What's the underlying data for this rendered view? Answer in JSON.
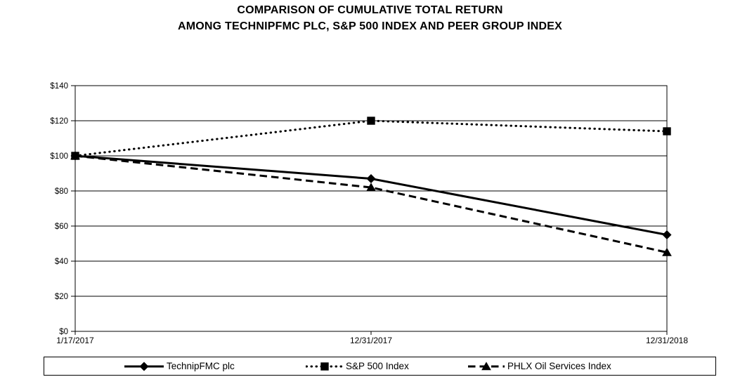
{
  "title": {
    "line1": "COMPARISON OF CUMULATIVE TOTAL RETURN",
    "line2": "AMONG TECHNIPFMC PLC, S&P 500 INDEX AND PEER GROUP INDEX"
  },
  "chart_data": {
    "type": "line",
    "title": "COMPARISON OF CUMULATIVE TOTAL RETURN AMONG TECHNIPFMC PLC, S&P 500 INDEX AND PEER GROUP INDEX",
    "x_labels": [
      "1/17/2017",
      "12/31/2017",
      "12/31/2018"
    ],
    "series": [
      {
        "name": "TechnipFMC plc",
        "values": [
          100,
          87,
          55
        ],
        "line_style": "solid",
        "marker": "diamond",
        "color": "#000000"
      },
      {
        "name": "S&P 500 Index",
        "values": [
          100,
          120,
          114
        ],
        "line_style": "dotted",
        "marker": "square",
        "color": "#000000"
      },
      {
        "name": "PHLX Oil Services Index",
        "values": [
          100,
          82,
          45
        ],
        "line_style": "dashed",
        "marker": "triangle",
        "color": "#000000"
      }
    ],
    "ylim": [
      0,
      140
    ],
    "ytick_step": 20,
    "ytick_labels": [
      "$0",
      "$20",
      "$40",
      "$60",
      "$80",
      "$100",
      "$120",
      "$140"
    ],
    "grid": "horizontal",
    "legend_position": "bottom-box",
    "axis_color": "#000000",
    "background": "#ffffff"
  }
}
